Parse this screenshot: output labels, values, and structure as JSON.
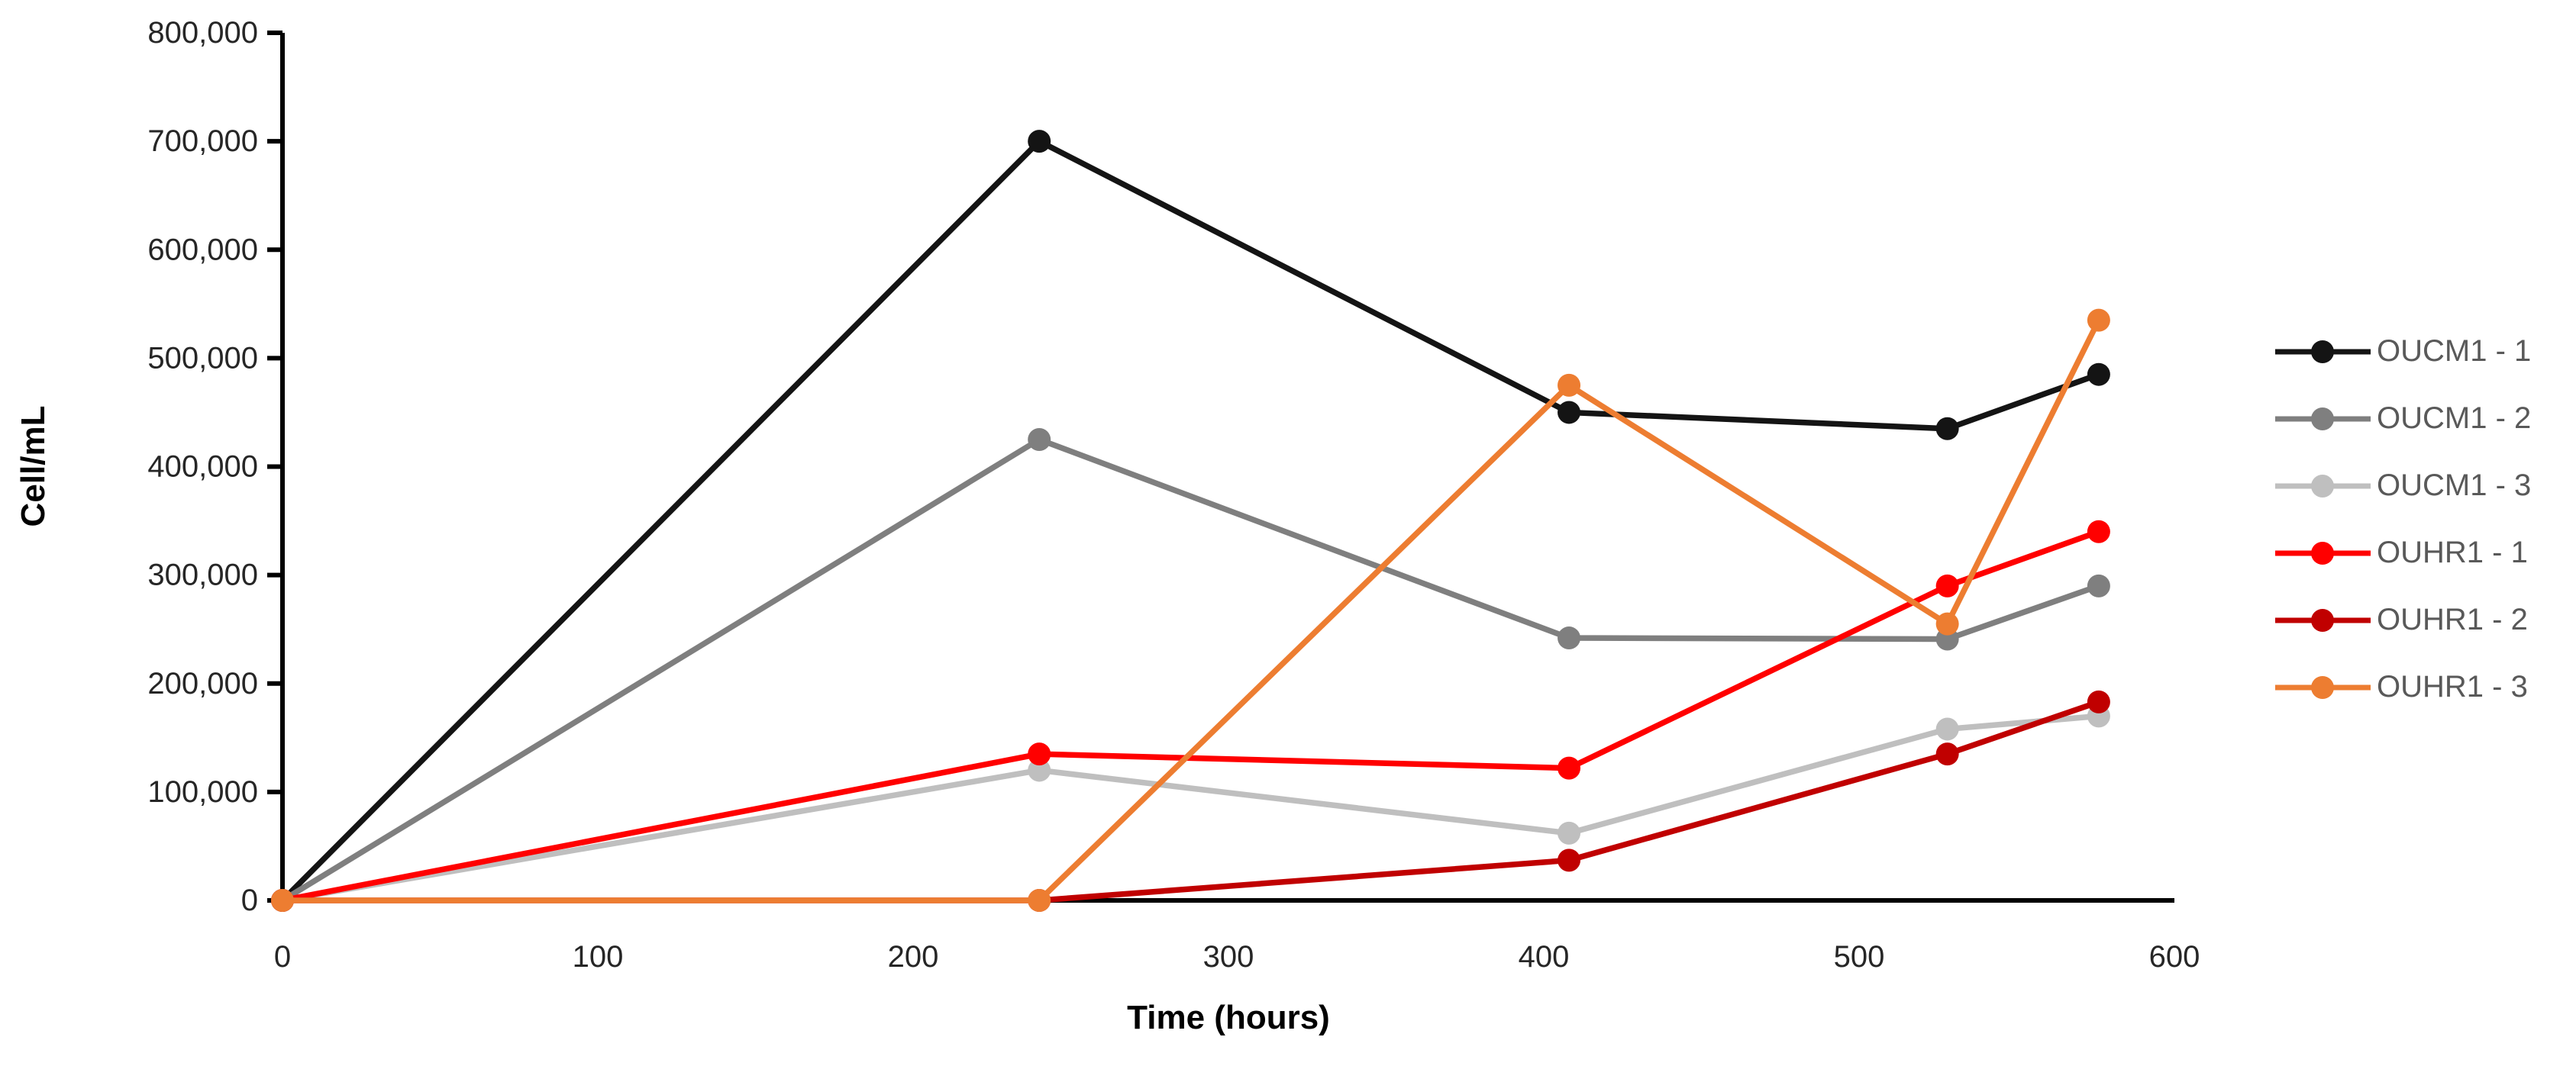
{
  "chart_data": {
    "type": "line",
    "title": "",
    "xlabel": "Time (hours)",
    "ylabel": "Cell/mL",
    "grid": false,
    "legend_position": "right",
    "xlim": [
      0,
      600
    ],
    "ylim": [
      0,
      800000
    ],
    "x_ticks": [
      0,
      100,
      200,
      300,
      400,
      500,
      600
    ],
    "x_tick_labels": [
      "0",
      "100",
      "200",
      "300",
      "400",
      "500",
      "600"
    ],
    "y_ticks": [
      0,
      100000,
      200000,
      300000,
      400000,
      500000,
      600000,
      700000,
      800000
    ],
    "y_tick_labels": [
      "0",
      "100,000",
      "200,000",
      "300,000",
      "400,000",
      "500,000",
      "600,000",
      "700,000",
      "800,000"
    ],
    "x": [
      0,
      240,
      408,
      528,
      576
    ],
    "series": [
      {
        "name": "OUCM1 - 1",
        "color": "#141414",
        "marker": "circle",
        "values": [
          0,
          700000,
          450000,
          435000,
          485000
        ]
      },
      {
        "name": "OUCM1 - 2",
        "color": "#7f7f7f",
        "marker": "circle",
        "values": [
          0,
          425000,
          242000,
          241000,
          290000
        ]
      },
      {
        "name": "OUCM1 - 3",
        "color": "#bfbfbf",
        "marker": "circle",
        "values": [
          0,
          120000,
          62000,
          158000,
          170000
        ]
      },
      {
        "name": "OUHR1 - 1",
        "color": "#ff0000",
        "marker": "circle",
        "values": [
          0,
          135000,
          122000,
          290000,
          340000
        ]
      },
      {
        "name": "OUHR1 - 2",
        "color": "#c00000",
        "marker": "circle",
        "values": [
          0,
          0,
          37000,
          135000,
          183000
        ]
      },
      {
        "name": "OUHR1 - 3",
        "color": "#ed7d31",
        "marker": "circle",
        "values": [
          0,
          0,
          475000,
          255000,
          535000
        ]
      }
    ],
    "axis_color": "#000000"
  }
}
